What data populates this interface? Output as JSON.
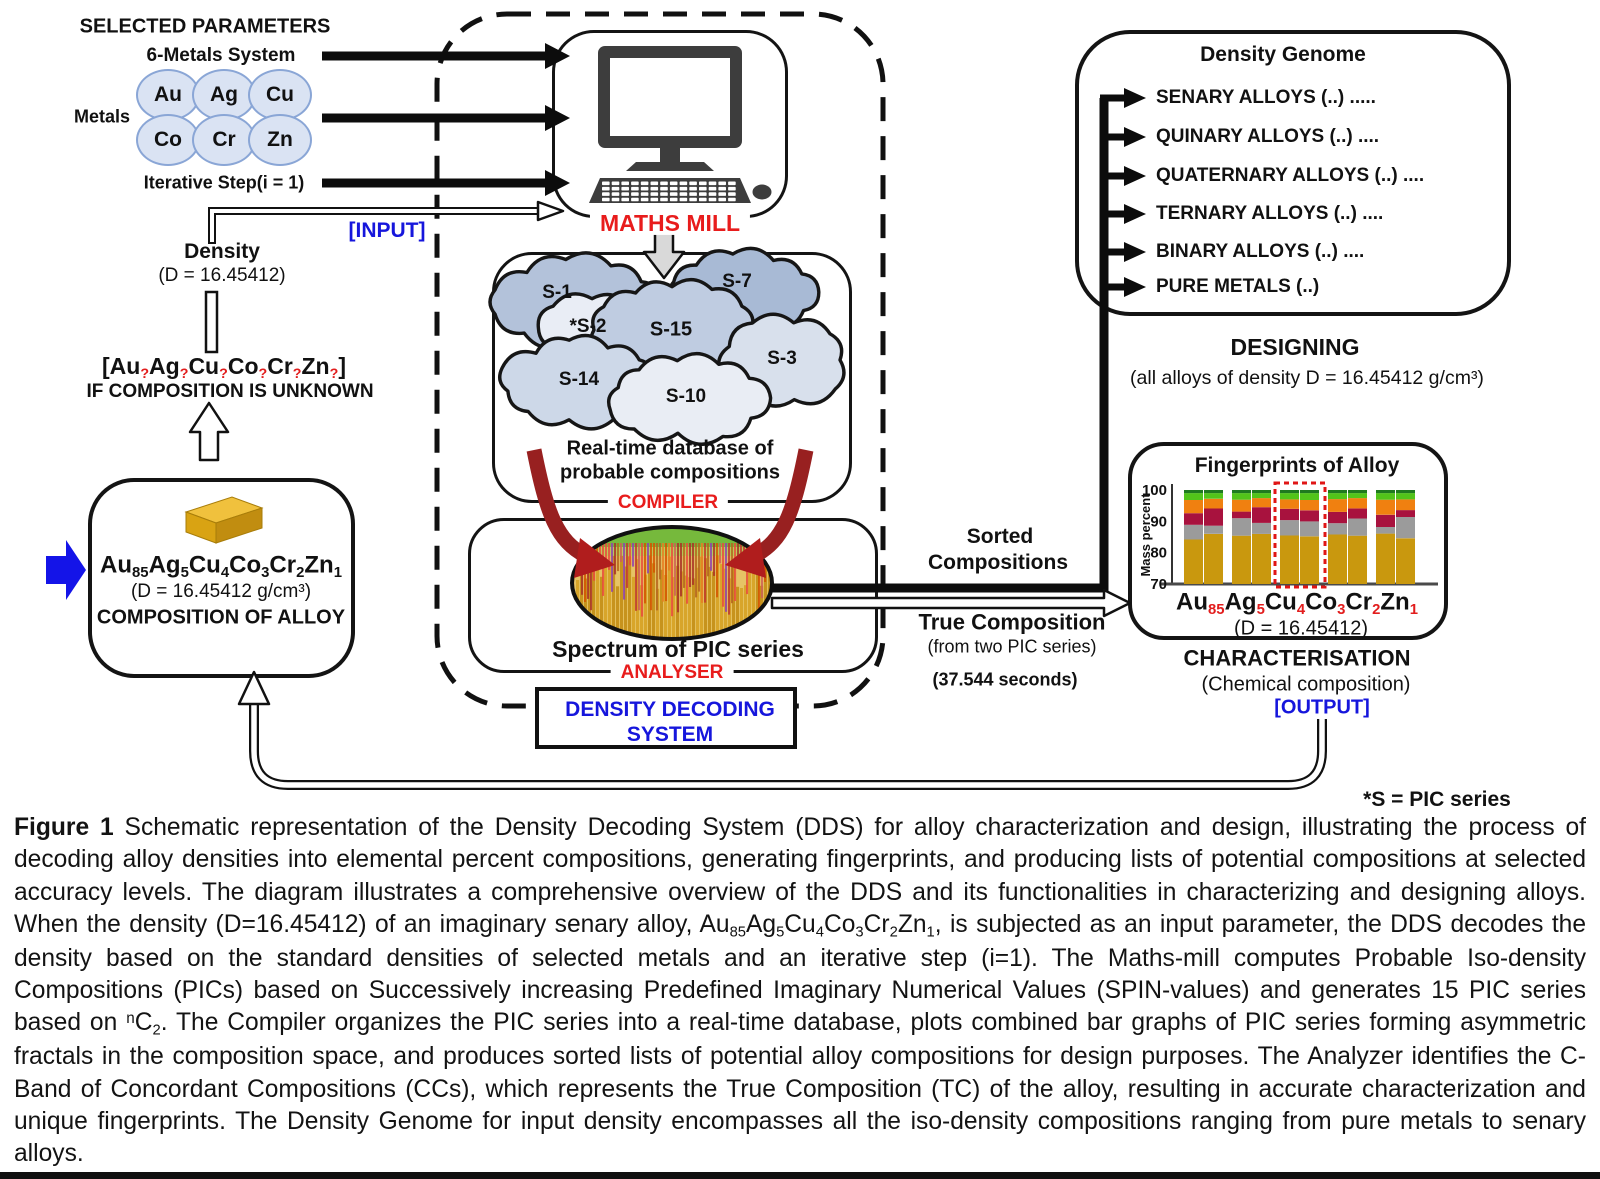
{
  "colors": {
    "accent_blue": "#1616dc",
    "accent_red": "#e21d1d",
    "metal_fill": "#dae3f3",
    "gold_bar": "#d9a313"
  },
  "params": {
    "title": "SELECTED PARAMETERS",
    "system": "6-Metals System",
    "metals_label": "Metals",
    "metals": [
      "Au",
      "Ag",
      "Cu",
      "Co",
      "Cr",
      "Zn"
    ],
    "iterative": "Iterative Step(i = 1)"
  },
  "input_tag": "[INPUT]",
  "density_node": {
    "title": "Density",
    "value": "(D = 16.45412)"
  },
  "unknown": {
    "formula": [
      {
        "t": "[Au"
      },
      {
        "sub": true,
        "red": true,
        "t": "?"
      },
      {
        "t": "Ag"
      },
      {
        "sub": true,
        "red": true,
        "t": "?"
      },
      {
        "t": "Cu"
      },
      {
        "sub": true,
        "red": true,
        "t": "?"
      },
      {
        "t": "Co"
      },
      {
        "sub": true,
        "red": true,
        "t": "?"
      },
      {
        "t": "Cr"
      },
      {
        "sub": true,
        "red": true,
        "t": "?"
      },
      {
        "t": "Zn"
      },
      {
        "sub": true,
        "red": true,
        "t": "?"
      },
      {
        "t": "]"
      }
    ],
    "caption": "IF COMPOSITION IS UNKNOWN"
  },
  "alloy_box": {
    "formula": [
      {
        "t": "Au"
      },
      {
        "sub": true,
        "t": "85"
      },
      {
        "t": "Ag"
      },
      {
        "sub": true,
        "t": "5"
      },
      {
        "t": "Cu"
      },
      {
        "sub": true,
        "t": "4"
      },
      {
        "t": "Co"
      },
      {
        "sub": true,
        "t": "3"
      },
      {
        "t": "Cr"
      },
      {
        "sub": true,
        "t": "2"
      },
      {
        "t": "Zn"
      },
      {
        "sub": true,
        "t": "1"
      }
    ],
    "density": "(D = 16.45412 g/cm³)",
    "label": "COMPOSITION OF ALLOY"
  },
  "maths_mill": {
    "label": "MATHS MILL"
  },
  "compiler": {
    "clouds": [
      "S-1",
      "S-7",
      "*S-2",
      "S-15",
      "S-3",
      "S-14",
      "S-10"
    ],
    "caption1": "Real-time database of",
    "caption2": "probable compositions",
    "label": "COMPILER"
  },
  "analyser": {
    "spectrum": "Spectrum of PIC series",
    "label": "ANALYSER"
  },
  "dds": {
    "line1": "DENSITY DECODING",
    "line2": "SYSTEM"
  },
  "sorted": {
    "line1": "Sorted",
    "line2": "Compositions"
  },
  "true_comp": {
    "title": "True Composition",
    "sub": "(from two PIC series)",
    "time": "(37.544 seconds)"
  },
  "genome": {
    "title": "Density Genome",
    "items": [
      "SENARY ALLOYS (..) .....",
      "QUINARY ALLOYS (..) ....",
      "QUATERNARY ALLOYS (..) ....",
      "TERNARY ALLOYS (..) ....",
      "BINARY ALLOYS (..) ....",
      "PURE METALS (..)"
    ]
  },
  "designing": {
    "title": "DESIGNING",
    "sub": "(all alloys of density D = 16.45412 g/cm³)"
  },
  "fingerprints": {
    "title": "Fingerprints of Alloy",
    "ylabel": "Mass percent",
    "formula": [
      {
        "t": "Au"
      },
      {
        "sub": true,
        "red": true,
        "t": "85"
      },
      {
        "t": "Ag"
      },
      {
        "sub": true,
        "red": true,
        "t": "5"
      },
      {
        "t": "Cu"
      },
      {
        "sub": true,
        "red": true,
        "t": "4"
      },
      {
        "t": "Co"
      },
      {
        "sub": true,
        "red": true,
        "t": "3"
      },
      {
        "t": "Cr"
      },
      {
        "sub": true,
        "red": true,
        "t": "2"
      },
      {
        "t": "Zn"
      },
      {
        "sub": true,
        "red": true,
        "t": "1"
      }
    ],
    "density": "(D = 16.45412)"
  },
  "characterisation": {
    "title": "CHARACTERISATION",
    "sub": "(Chemical composition)",
    "output": "[OUTPUT]"
  },
  "footnote": "*S = PIC series",
  "chart_data": {
    "type": "bar",
    "title": "Fingerprints of Alloy",
    "ylabel": "Mass percent",
    "ylim": [
      70,
      100
    ],
    "yticks": [
      100,
      90,
      80,
      70
    ],
    "groups": 5,
    "bars_per_group": 2,
    "stack_order": [
      "Au",
      "Ag",
      "Cu",
      "Co",
      "Cr",
      "Zn"
    ],
    "segment_colors": {
      "Au": "#c9980e",
      "Ag": "#9b9b9b",
      "Cu": "#a8123e",
      "Co": "#f08010",
      "Cr": "#52c41a",
      "Zn": "#1f7a1f"
    },
    "bars": [
      [
        84.2,
        88.9,
        92.6,
        96.8,
        99,
        100
      ],
      [
        86.0,
        88.6,
        94.1,
        97.2,
        99,
        100
      ],
      [
        85.4,
        91.0,
        93.1,
        96.9,
        99,
        100
      ],
      [
        86.0,
        89.5,
        94.5,
        97.4,
        99,
        100
      ],
      [
        85.5,
        90.4,
        94.0,
        97.0,
        99,
        100
      ],
      [
        85.2,
        90.0,
        93.5,
        96.8,
        99,
        100
      ],
      [
        85.8,
        89.4,
        93.0,
        97.1,
        99,
        100
      ],
      [
        85.4,
        90.9,
        94.1,
        97.4,
        99,
        100
      ],
      [
        86.1,
        88.2,
        92.1,
        96.9,
        99,
        100
      ],
      [
        84.6,
        91.4,
        93.6,
        97.0,
        99,
        100
      ]
    ],
    "highlight": {
      "group_index": 2,
      "style": "red-dashed-outline"
    }
  },
  "caption_runs": [
    {
      "b": true,
      "t": "Figure 1 "
    },
    {
      "t": "Schematic representation of the Density Decoding System (DDS) for alloy characterization and design, illustrating the process of decoding alloy densities into elemental percent compositions, generating fingerprints, and producing lists of potential compositions at selected accuracy levels. The diagram illustrates a comprehensive overview of the DDS and its functionalities in characterizing and designing alloys. When the density (D=16.45412) of an imaginary senary alloy, Au"
    },
    {
      "sub": true,
      "t": "85"
    },
    {
      "t": "Ag"
    },
    {
      "sub": true,
      "t": "5"
    },
    {
      "t": "Cu"
    },
    {
      "sub": true,
      "t": "4"
    },
    {
      "t": "Co"
    },
    {
      "sub": true,
      "t": "3"
    },
    {
      "t": "Cr"
    },
    {
      "sub": true,
      "t": "2"
    },
    {
      "t": "Zn"
    },
    {
      "sub": true,
      "t": "1"
    },
    {
      "t": ", is subjected as an input parameter, the DDS decodes the density based on the standard densities of selected metals and an iterative step (i=1). The Maths-mill computes Probable Iso-density Compositions (PICs) based on Successively increasing Predefined Imaginary Numerical Values (SPIN-values) and generates 15 PIC series based on "
    },
    {
      "sup": true,
      "t": "n"
    },
    {
      "t": "C"
    },
    {
      "sub": true,
      "t": "2"
    },
    {
      "t": ". The Compiler organizes the PIC series into a real-time database, plots combined bar graphs of PIC series forming asymmetric fractals in the composition space, and produces sorted lists of potential alloy compositions for design purposes. The Analyzer identifies the C-Band of Concordant Compositions (CCs), which represents the True Composition (TC) of the alloy, resulting in accurate characterization and unique fingerprints. The Density Genome for input density encompasses all the iso-density compositions ranging from pure metals to senary alloys."
    }
  ]
}
